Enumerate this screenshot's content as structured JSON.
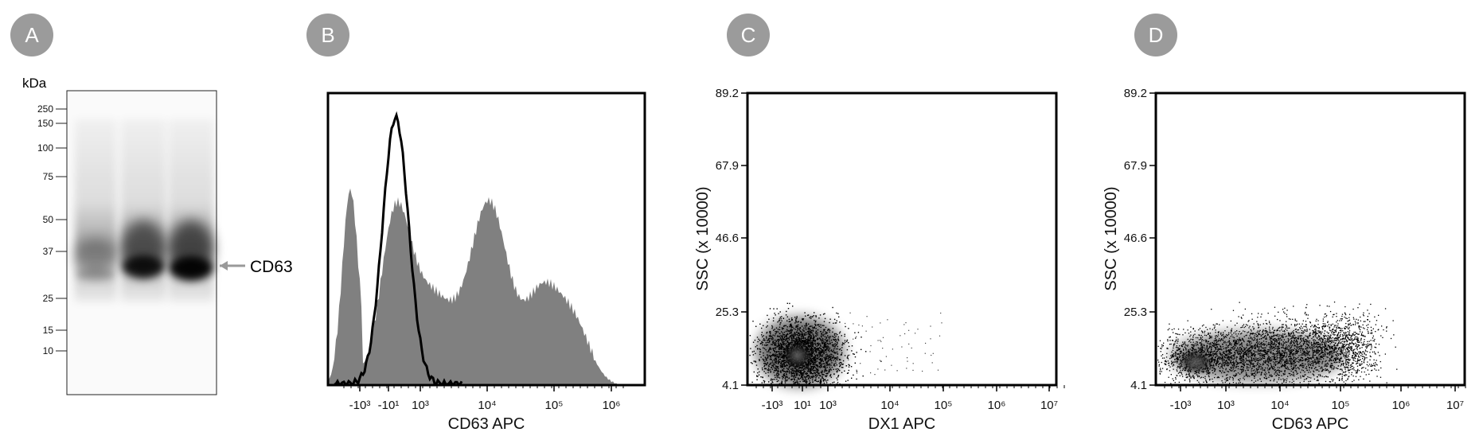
{
  "panels": [
    {
      "letter": "A"
    },
    {
      "letter": "B"
    },
    {
      "letter": "C"
    },
    {
      "letter": "D"
    }
  ],
  "blot": {
    "unit": "kDa",
    "markers": [
      "250",
      "150",
      "100",
      "75",
      "50",
      "37",
      "25",
      "15",
      "10"
    ],
    "band_label": "CD63"
  },
  "histogram": {
    "xlabel": "CD63 APC",
    "xticks": [
      "-10³",
      "-10¹",
      "10³",
      "10⁴",
      "10⁵",
      "10⁶"
    ]
  },
  "scatter_c": {
    "xlabel": "DX1 APC",
    "ylabel": "SSC (x 10000)",
    "yticks": [
      "89.2",
      "67.9",
      "46.6",
      "25.3",
      "4.1"
    ],
    "xticks": [
      "-10³",
      "10¹",
      "10³",
      "10⁴",
      "10⁵",
      "10⁶",
      "10⁷"
    ]
  },
  "scatter_d": {
    "xlabel": "CD63 APC",
    "ylabel": "SSC (x 10000)",
    "yticks": [
      "89.2",
      "67.9",
      "46.6",
      "25.3",
      "4.1"
    ],
    "xticks": [
      "-10³",
      "10³",
      "10⁴",
      "10⁵",
      "10⁶",
      "10⁷"
    ]
  },
  "colors": {
    "badge": "#9b9b9b",
    "histogram_fill": "#808080",
    "arrow": "#999999"
  }
}
